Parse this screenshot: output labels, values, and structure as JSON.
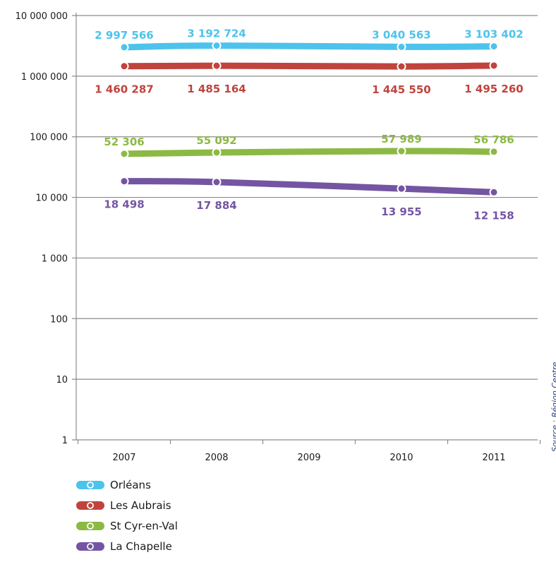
{
  "chart_data": {
    "type": "line",
    "title": "",
    "xlabel": "",
    "ylabel": "",
    "y_scale": "log",
    "ylim": [
      1,
      10000000
    ],
    "y_ticks": [
      {
        "value": 1,
        "label": "1"
      },
      {
        "value": 10,
        "label": "10"
      },
      {
        "value": 100,
        "label": "100"
      },
      {
        "value": 1000,
        "label": "1 000"
      },
      {
        "value": 10000,
        "label": "10 000"
      },
      {
        "value": 100000,
        "label": "100 000"
      },
      {
        "value": 1000000,
        "label": "1 000 000"
      },
      {
        "value": 10000000,
        "label": "10 000 000"
      }
    ],
    "categories": [
      "2007",
      "2008",
      "2009",
      "2010",
      "2011"
    ],
    "grid": "horizontal",
    "legend_position": "bottom-left",
    "series": [
      {
        "name": "Orléans",
        "color": "#4dc3ec",
        "label_position": "above",
        "points": [
          {
            "x": "2007",
            "y": 2997566,
            "label": "2 997 566"
          },
          {
            "x": "2008",
            "y": 3192724,
            "label": "3 192 724"
          },
          {
            "x": "2010",
            "y": 3040563,
            "label": "3 040 563"
          },
          {
            "x": "2011",
            "y": 3103402,
            "label": "3 103 402"
          }
        ]
      },
      {
        "name": "Les Aubrais",
        "color": "#c0433d",
        "label_position": "below",
        "points": [
          {
            "x": "2007",
            "y": 1460287,
            "label": "1 460 287"
          },
          {
            "x": "2008",
            "y": 1485164,
            "label": "1 485 164"
          },
          {
            "x": "2010",
            "y": 1445550,
            "label": "1 445 550"
          },
          {
            "x": "2011",
            "y": 1495260,
            "label": "1 495 260"
          }
        ]
      },
      {
        "name": "St Cyr-en-Val",
        "color": "#8cb944",
        "label_position": "above",
        "points": [
          {
            "x": "2007",
            "y": 52306,
            "label": "52 306"
          },
          {
            "x": "2008",
            "y": 55092,
            "label": "55 092"
          },
          {
            "x": "2010",
            "y": 57989,
            "label": "57 989"
          },
          {
            "x": "2011",
            "y": 56786,
            "label": "56 786"
          }
        ]
      },
      {
        "name": "La Chapelle",
        "color": "#7455a2",
        "label_position": "below",
        "points": [
          {
            "x": "2007",
            "y": 18498,
            "label": "18 498"
          },
          {
            "x": "2008",
            "y": 17884,
            "label": "17 884"
          },
          {
            "x": "2010",
            "y": 13955,
            "label": "13 955"
          },
          {
            "x": "2011",
            "y": 12158,
            "label": "12 158"
          }
        ]
      }
    ],
    "source_note": "Source : Région Centre"
  }
}
